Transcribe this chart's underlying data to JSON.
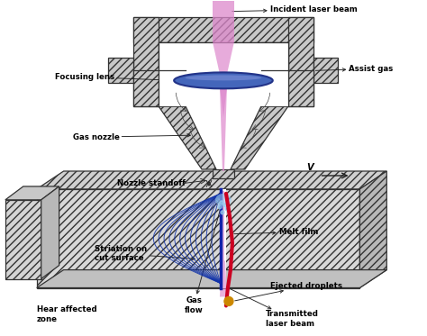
{
  "bg_color": "#ffffff",
  "metal_fc": "#c8c8c8",
  "metal_ec": "#333333",
  "metal_fc_dark": "#a8a8a8",
  "metal_fc_side": "#b0b0b0",
  "laser_color": "#dd88cc",
  "lens_fc": "#4466bb",
  "lens_ec": "#223388",
  "melt_color": "#cc0022",
  "stri_color": "#1133aa",
  "drop_color": "#cc8800",
  "gas_color": "#99ccee",
  "arrow_color": "#222222",
  "labels": {
    "incident_laser_beam": "Incident laser beam",
    "focusing_lens": "Focusing lens",
    "assist_gas": "Assist gas",
    "gas_nozzle": "Gas nozzle",
    "v_label": "V",
    "nozzle_standoff": "Nozzle standoff",
    "melt_film": "Melt film",
    "striation": "Striation on\ncut surface",
    "heat_affected": "Hear affected\nzone",
    "gas_flow": "Gas\nflow",
    "ejected_droplets": "Ejected droplets",
    "transmitted": "Transmitted\nlaser beam"
  }
}
